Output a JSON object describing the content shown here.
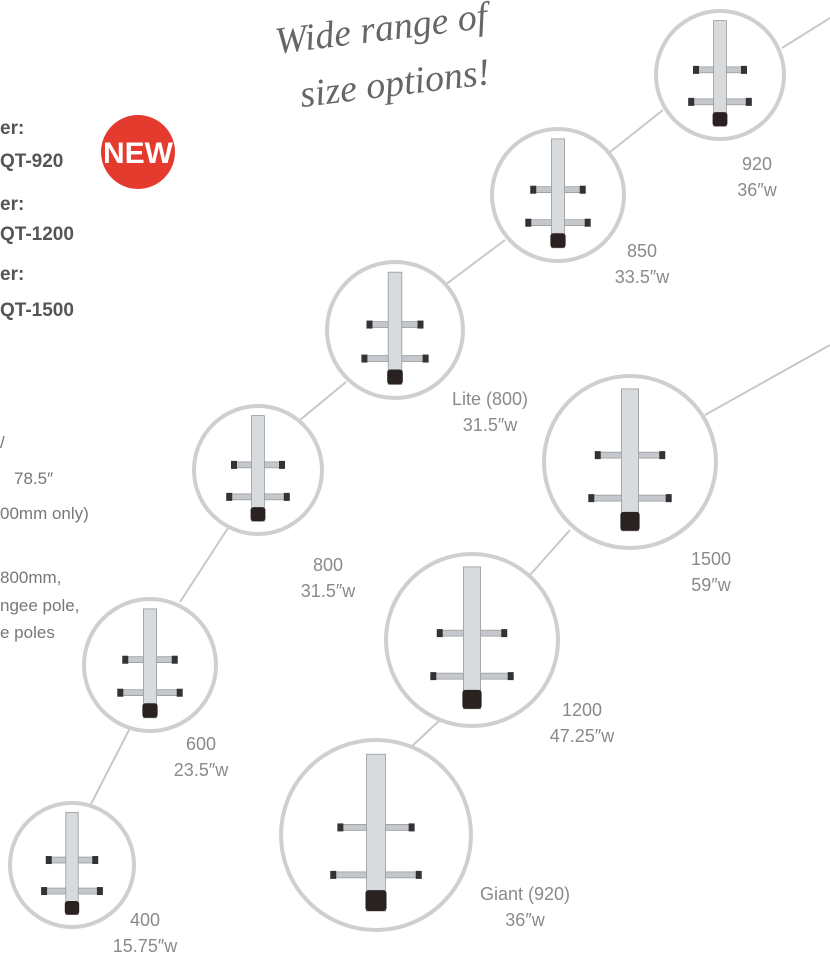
{
  "headline": {
    "lines": [
      "Wide range of",
      "size options!"
    ]
  },
  "models": [
    {
      "label": "er:",
      "code": "QT-920"
    },
    {
      "label": "er:",
      "code": "QT-1200"
    },
    {
      "label": "er:",
      "code": "QT-1500"
    }
  ],
  "badge": "NEW",
  "specs": [
    "/",
    "78.5″",
    "00mm only)",
    "800mm,",
    "ngee pole,",
    "e poles"
  ],
  "products": [
    {
      "name": "920",
      "width": "36″w"
    },
    {
      "name": "850",
      "width": "33.5″w"
    },
    {
      "name": "Lite (800)",
      "width": "31.5″w"
    },
    {
      "name": "800",
      "width": "31.5″w"
    },
    {
      "name": "600",
      "width": "23.5″w"
    },
    {
      "name": "400",
      "width": "15.75″w"
    },
    {
      "name": "1500",
      "width": "59″w"
    },
    {
      "name": "1200",
      "width": "47.25″w"
    },
    {
      "name": "Giant (920)",
      "width": "36″w"
    }
  ]
}
